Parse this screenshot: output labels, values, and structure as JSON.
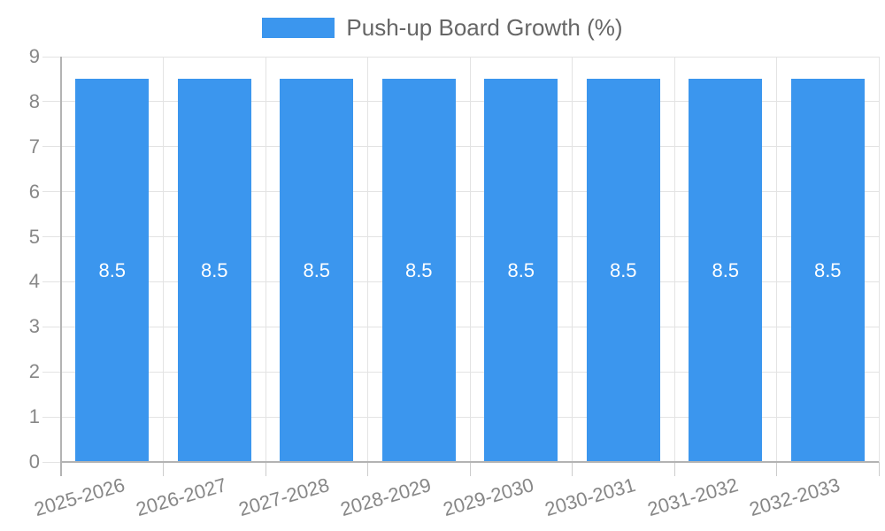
{
  "chart_data": {
    "type": "bar",
    "title": "Push-up Board Growth (%)",
    "legend": {
      "label": "Push-up Board Growth (%)",
      "position": "top-center"
    },
    "categories": [
      "2025-2026",
      "2026-2027",
      "2027-2028",
      "2028-2029",
      "2029-2030",
      "2030-2031",
      "2031-2032",
      "2032-2033"
    ],
    "values": [
      8.5,
      8.5,
      8.5,
      8.5,
      8.5,
      8.5,
      8.5,
      8.5
    ],
    "bar_value_labels": [
      "8.5",
      "8.5",
      "8.5",
      "8.5",
      "8.5",
      "8.5",
      "8.5",
      "8.5"
    ],
    "xlabel": "",
    "ylabel": "",
    "ylim": [
      0,
      9
    ],
    "yticks": [
      0,
      1,
      2,
      3,
      4,
      5,
      6,
      7,
      8,
      9
    ],
    "grid": true,
    "colors": {
      "bar": "#3b96ee",
      "bar_label": "#ffffff",
      "grid_line": "#e3e3e3",
      "axis_line": "#b3b3b3",
      "tick_stub": "#cccccc",
      "tick_label": "#878787",
      "legend_label": "#666666",
      "background": "#ffffff"
    }
  }
}
